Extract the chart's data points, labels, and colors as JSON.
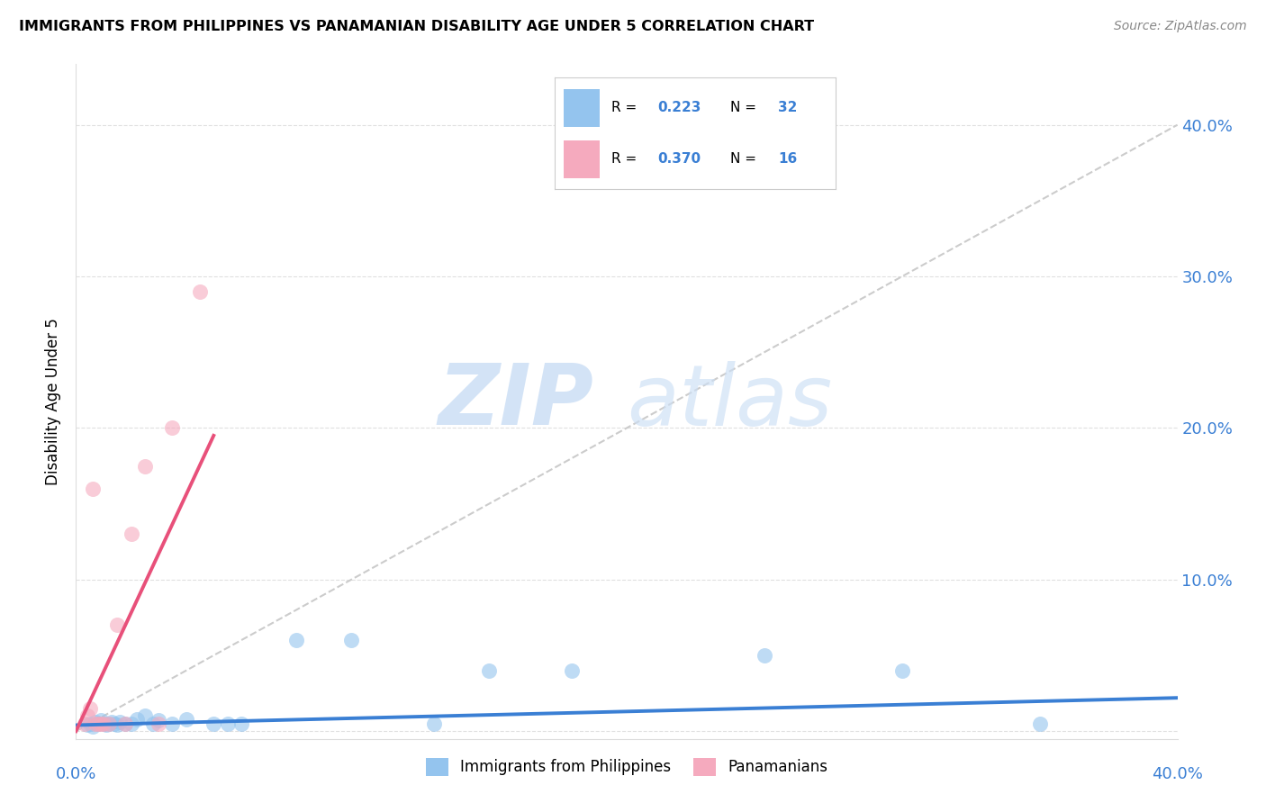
{
  "title": "IMMIGRANTS FROM PHILIPPINES VS PANAMANIAN DISABILITY AGE UNDER 5 CORRELATION CHART",
  "source": "Source: ZipAtlas.com",
  "ylabel": "Disability Age Under 5",
  "xlim": [
    0.0,
    0.4
  ],
  "ylim": [
    -0.005,
    0.44
  ],
  "yticks": [
    0.0,
    0.1,
    0.2,
    0.3,
    0.4
  ],
  "right_ytick_labels": [
    "",
    "10.0%",
    "20.0%",
    "30.0%",
    "40.0%"
  ],
  "blue_color": "#94C4EE",
  "pink_color": "#F5AABE",
  "blue_line_color": "#3A7FD4",
  "pink_line_color": "#E8507A",
  "dash_line_color": "#CCCCCC",
  "blue_scatter_x": [
    0.004,
    0.005,
    0.006,
    0.007,
    0.008,
    0.009,
    0.01,
    0.011,
    0.012,
    0.013,
    0.014,
    0.015,
    0.016,
    0.018,
    0.02,
    0.022,
    0.025,
    0.028,
    0.03,
    0.035,
    0.04,
    0.05,
    0.055,
    0.06,
    0.08,
    0.1,
    0.13,
    0.15,
    0.18,
    0.25,
    0.3,
    0.35
  ],
  "blue_scatter_y": [
    0.004,
    0.005,
    0.003,
    0.006,
    0.005,
    0.007,
    0.005,
    0.004,
    0.005,
    0.006,
    0.005,
    0.004,
    0.006,
    0.005,
    0.005,
    0.008,
    0.01,
    0.005,
    0.007,
    0.005,
    0.008,
    0.005,
    0.005,
    0.005,
    0.06,
    0.06,
    0.005,
    0.04,
    0.04,
    0.05,
    0.04,
    0.005
  ],
  "pink_scatter_x": [
    0.003,
    0.004,
    0.005,
    0.006,
    0.007,
    0.008,
    0.009,
    0.01,
    0.012,
    0.015,
    0.018,
    0.02,
    0.025,
    0.03,
    0.035,
    0.045
  ],
  "pink_scatter_y": [
    0.005,
    0.01,
    0.015,
    0.16,
    0.005,
    0.005,
    0.005,
    0.005,
    0.005,
    0.07,
    0.005,
    0.13,
    0.175,
    0.005,
    0.2,
    0.29
  ],
  "blue_trend_x": [
    0.0,
    0.4
  ],
  "blue_trend_y": [
    0.004,
    0.022
  ],
  "pink_trend_x": [
    0.0,
    0.05
  ],
  "pink_trend_y": [
    0.0,
    0.195
  ],
  "dash_trend_x": [
    0.0,
    0.4
  ],
  "dash_trend_y": [
    0.0,
    0.4
  ],
  "watermark_zip": "ZIP",
  "watermark_atlas": "atlas",
  "background_color": "#FFFFFF",
  "grid_color": "#E0E0E0"
}
